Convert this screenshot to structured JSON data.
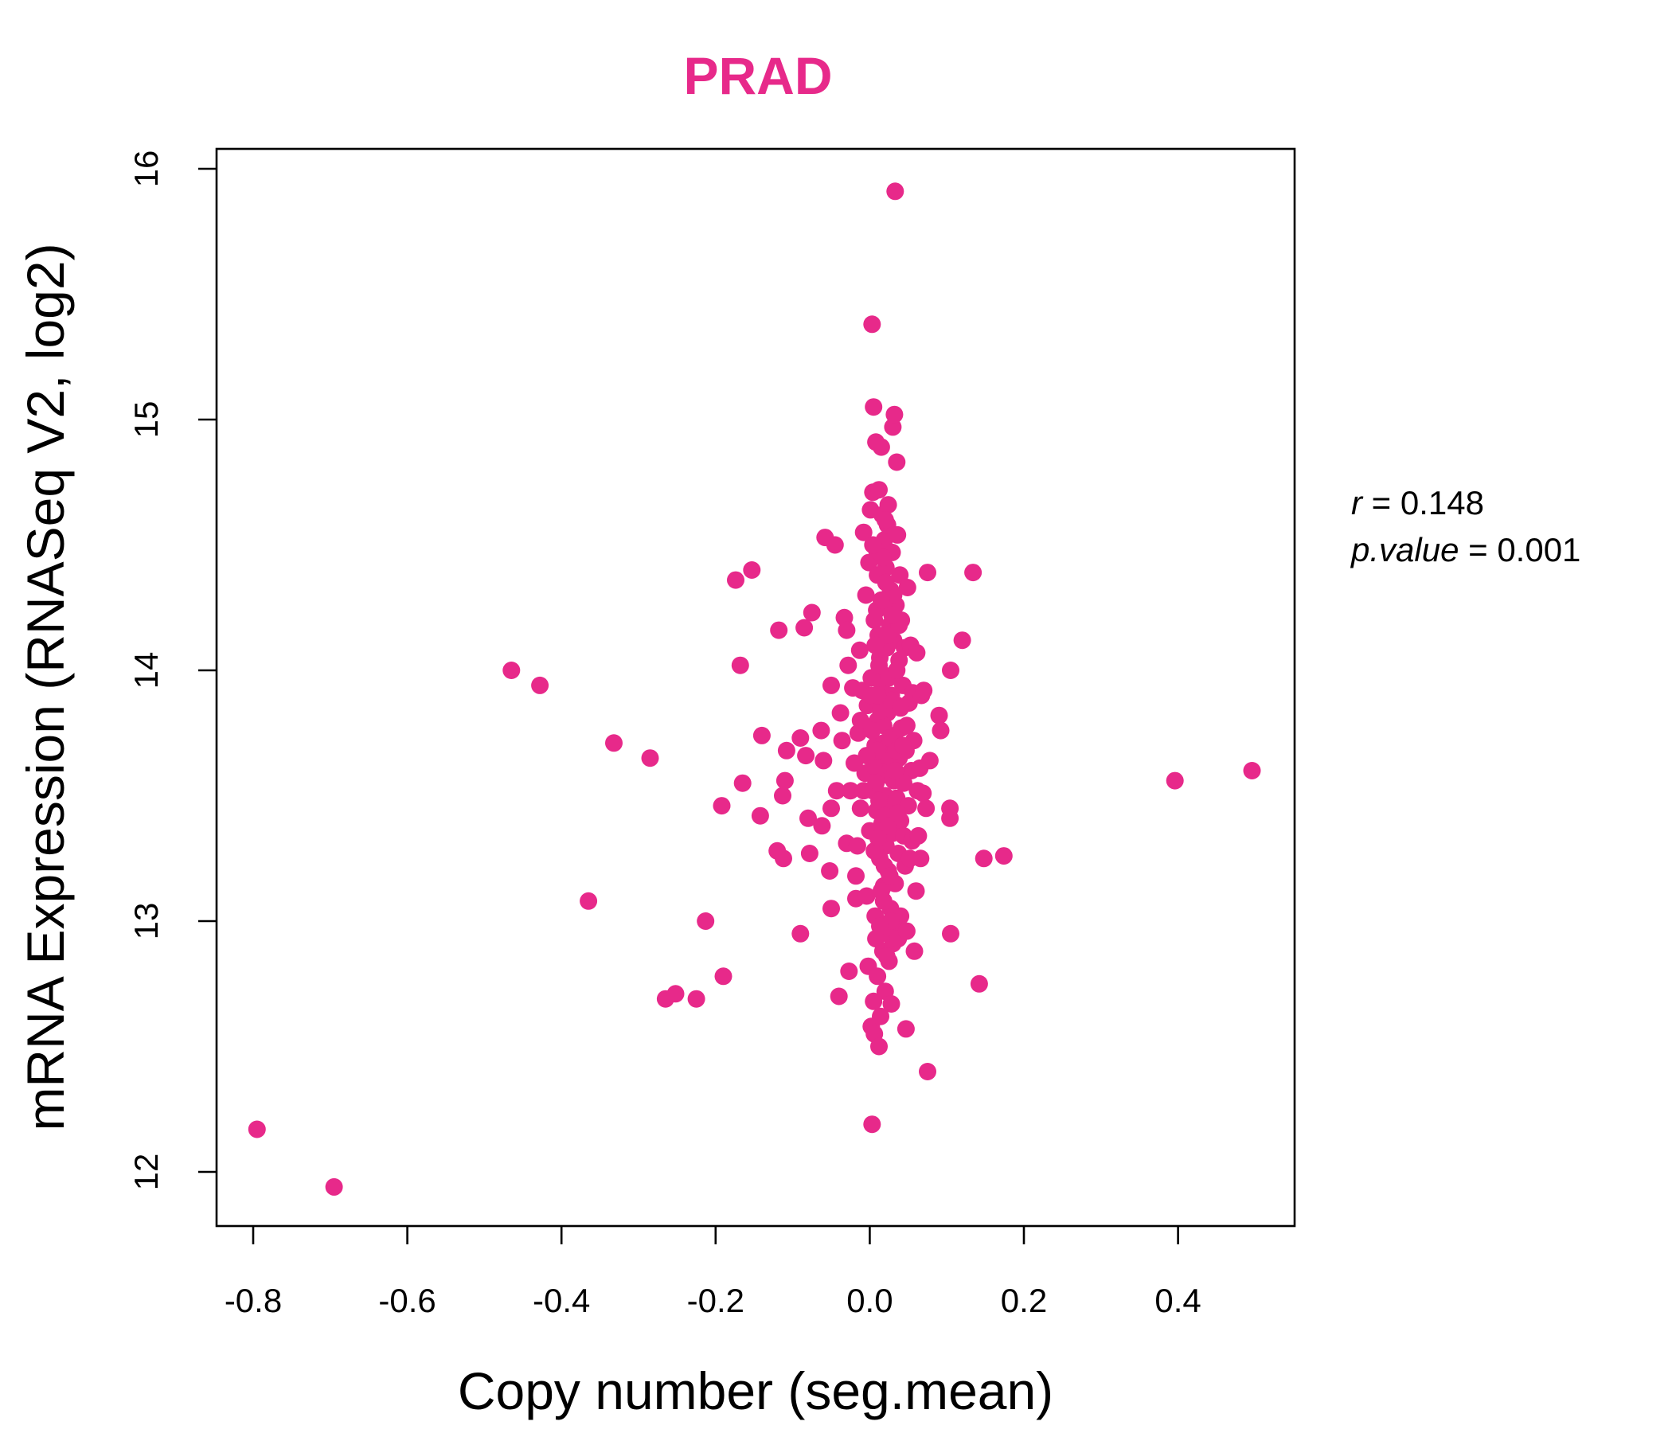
{
  "chart_data": {
    "type": "scatter",
    "title": "PRAD",
    "xlabel": "Copy number (seg.mean)",
    "ylabel": "mRNA Expression (RNASeq V2, log2)",
    "xlim": [
      -0.85,
      0.55
    ],
    "ylim": [
      11.8,
      16.1
    ],
    "xticks": [
      -0.8,
      -0.6,
      -0.4,
      -0.2,
      0.0,
      0.2,
      0.4
    ],
    "xtick_labels": [
      "-0.8",
      "-0.6",
      "-0.4",
      "-0.2",
      "0.0",
      "0.2",
      "0.4"
    ],
    "yticks": [
      12,
      13,
      14,
      15,
      16
    ],
    "ytick_labels": [
      "12",
      "13",
      "14",
      "15",
      "16"
    ],
    "grid": false,
    "legend": "none",
    "colors": {
      "points": "#E7298A",
      "title": "#E7298A"
    },
    "stats": {
      "r_label": "r",
      "r_value": "0.148",
      "p_label": "p.value",
      "p_value": "0.001"
    },
    "series": [
      {
        "points": [
          [
            -0.795,
            12.17
          ],
          [
            -0.695,
            11.94
          ],
          [
            -0.465,
            14.0
          ],
          [
            -0.428,
            13.94
          ],
          [
            -0.365,
            13.08
          ],
          [
            -0.332,
            13.71
          ],
          [
            -0.285,
            13.65
          ],
          [
            -0.265,
            12.69
          ],
          [
            -0.252,
            12.71
          ],
          [
            -0.225,
            12.69
          ],
          [
            -0.213,
            13.0
          ],
          [
            -0.192,
            13.46
          ],
          [
            -0.19,
            12.78
          ],
          [
            -0.174,
            14.36
          ],
          [
            -0.168,
            14.02
          ],
          [
            -0.165,
            13.55
          ],
          [
            -0.153,
            14.4
          ],
          [
            -0.142,
            13.42
          ],
          [
            -0.14,
            13.74
          ],
          [
            -0.12,
            13.28
          ],
          [
            -0.118,
            14.16
          ],
          [
            -0.113,
            13.5
          ],
          [
            -0.112,
            13.25
          ],
          [
            -0.11,
            13.56
          ],
          [
            -0.108,
            13.68
          ],
          [
            -0.09,
            12.95
          ],
          [
            -0.09,
            13.73
          ],
          [
            -0.085,
            14.17
          ],
          [
            -0.083,
            13.66
          ],
          [
            -0.08,
            13.41
          ],
          [
            -0.078,
            13.27
          ],
          [
            -0.075,
            14.23
          ],
          [
            -0.063,
            13.76
          ],
          [
            -0.062,
            13.38
          ],
          [
            -0.06,
            13.64
          ],
          [
            -0.058,
            14.53
          ],
          [
            -0.052,
            13.2
          ],
          [
            -0.05,
            13.05
          ],
          [
            -0.05,
            13.45
          ],
          [
            -0.05,
            13.94
          ],
          [
            -0.045,
            14.5
          ],
          [
            -0.043,
            13.52
          ],
          [
            -0.04,
            12.7
          ],
          [
            -0.038,
            13.83
          ],
          [
            -0.036,
            13.72
          ],
          [
            -0.033,
            14.21
          ],
          [
            -0.03,
            14.16
          ],
          [
            -0.03,
            13.31
          ],
          [
            -0.028,
            14.02
          ],
          [
            -0.027,
            12.8
          ],
          [
            -0.025,
            13.52
          ],
          [
            -0.022,
            13.93
          ],
          [
            -0.02,
            13.63
          ],
          [
            -0.018,
            13.18
          ],
          [
            -0.018,
            13.09
          ],
          [
            -0.016,
            13.3
          ],
          [
            -0.015,
            13.75
          ],
          [
            -0.013,
            14.08
          ],
          [
            -0.012,
            13.45
          ],
          [
            -0.01,
            13.92
          ],
          [
            -0.008,
            14.55
          ],
          [
            -0.006,
            13.59
          ],
          [
            -0.005,
            14.3
          ],
          [
            -0.004,
            13.1
          ],
          [
            -0.003,
            13.86
          ],
          [
            -0.002,
            12.82
          ],
          [
            -0.001,
            14.43
          ],
          [
            0.0,
            13.36
          ],
          [
            0.001,
            14.64
          ],
          [
            0.002,
            12.58
          ],
          [
            0.002,
            13.97
          ],
          [
            0.003,
            12.19
          ],
          [
            0.003,
            15.38
          ],
          [
            0.004,
            14.71
          ],
          [
            0.004,
            13.52
          ],
          [
            0.005,
            15.05
          ],
          [
            0.005,
            12.68
          ],
          [
            0.006,
            12.55
          ],
          [
            0.006,
            14.2
          ],
          [
            0.007,
            13.02
          ],
          [
            0.007,
            13.7
          ],
          [
            0.008,
            14.91
          ],
          [
            0.008,
            12.93
          ],
          [
            0.009,
            14.48
          ],
          [
            0.009,
            13.44
          ],
          [
            0.01,
            14.38
          ],
          [
            0.01,
            13.8
          ],
          [
            0.01,
            12.78
          ],
          [
            0.011,
            14.14
          ],
          [
            0.011,
            13.57
          ],
          [
            0.012,
            14.72
          ],
          [
            0.012,
            12.5
          ],
          [
            0.013,
            13.25
          ],
          [
            0.013,
            14.05
          ],
          [
            0.014,
            13.6
          ],
          [
            0.014,
            12.62
          ],
          [
            0.015,
            14.89
          ],
          [
            0.015,
            13.92
          ],
          [
            0.016,
            13.39
          ],
          [
            0.016,
            14.62
          ],
          [
            0.017,
            12.88
          ],
          [
            0.017,
            14.27
          ],
          [
            0.018,
            13.71
          ],
          [
            0.018,
            13.14
          ],
          [
            0.019,
            14.52
          ],
          [
            0.019,
            13.98
          ],
          [
            0.02,
            12.72
          ],
          [
            0.02,
            13.5
          ],
          [
            0.021,
            14.41
          ],
          [
            0.021,
            13.3
          ],
          [
            0.022,
            14.09
          ],
          [
            0.022,
            12.95
          ],
          [
            0.023,
            13.83
          ],
          [
            0.023,
            14.58
          ],
          [
            0.024,
            13.2
          ],
          [
            0.024,
            14.66
          ],
          [
            0.025,
            13.62
          ],
          [
            0.025,
            12.84
          ],
          [
            0.026,
            14.18
          ],
          [
            0.026,
            13.45
          ],
          [
            0.027,
            14.32
          ],
          [
            0.027,
            13.05
          ],
          [
            0.028,
            12.67
          ],
          [
            0.028,
            13.9
          ],
          [
            0.029,
            14.47
          ],
          [
            0.029,
            13.35
          ],
          [
            0.03,
            14.97
          ],
          [
            0.03,
            12.91
          ],
          [
            0.031,
            14.12
          ],
          [
            0.031,
            13.56
          ],
          [
            0.032,
            15.02
          ],
          [
            0.032,
            13.74
          ],
          [
            0.033,
            15.91
          ],
          [
            0.033,
            13.15
          ],
          [
            0.034,
            14.26
          ],
          [
            0.034,
            12.99
          ],
          [
            0.035,
            14.83
          ],
          [
            0.035,
            13.49
          ],
          [
            0.036,
            14.54
          ],
          [
            0.036,
            13.86
          ],
          [
            0.037,
            13.27
          ],
          [
            0.037,
            12.93
          ],
          [
            0.038,
            14.04
          ],
          [
            0.038,
            13.65
          ],
          [
            0.039,
            14.38
          ],
          [
            0.04,
            13.4
          ],
          [
            0.04,
            13.02
          ],
          [
            0.041,
            14.2
          ],
          [
            0.042,
            13.58
          ],
          [
            0.043,
            13.94
          ],
          [
            0.044,
            13.34
          ],
          [
            0.045,
            14.09
          ],
          [
            0.046,
            13.22
          ],
          [
            0.047,
            12.57
          ],
          [
            0.047,
            13.68
          ],
          [
            0.048,
            12.96
          ],
          [
            0.049,
            14.33
          ],
          [
            0.05,
            13.46
          ],
          [
            0.051,
            13.87
          ],
          [
            0.052,
            13.25
          ],
          [
            0.053,
            14.1
          ],
          [
            0.054,
            13.6
          ],
          [
            0.055,
            13.32
          ],
          [
            0.056,
            13.91
          ],
          [
            0.057,
            13.72
          ],
          [
            0.058,
            12.88
          ],
          [
            0.06,
            13.12
          ],
          [
            0.061,
            14.07
          ],
          [
            0.062,
            13.52
          ],
          [
            0.063,
            13.34
          ],
          [
            0.065,
            13.61
          ],
          [
            0.066,
            13.25
          ],
          [
            0.067,
            13.9
          ],
          [
            0.069,
            13.51
          ],
          [
            0.07,
            13.92
          ],
          [
            0.073,
            13.45
          ],
          [
            0.075,
            12.4
          ],
          [
            0.075,
            14.39
          ],
          [
            0.078,
            13.64
          ],
          [
            0.09,
            13.82
          ],
          [
            0.092,
            13.76
          ],
          [
            0.104,
            13.45
          ],
          [
            0.104,
            13.41
          ],
          [
            0.105,
            12.95
          ],
          [
            0.105,
            14.0
          ],
          [
            0.12,
            14.12
          ],
          [
            0.134,
            14.39
          ],
          [
            0.142,
            12.75
          ],
          [
            0.148,
            13.25
          ],
          [
            0.174,
            13.26
          ],
          [
            0.396,
            13.56
          ],
          [
            0.496,
            13.6
          ],
          [
            0.005,
            13.62
          ],
          [
            0.012,
            13.48
          ],
          [
            0.018,
            13.78
          ],
          [
            0.022,
            13.66
          ],
          [
            0.008,
            13.55
          ],
          [
            0.026,
            13.73
          ],
          [
            0.014,
            13.84
          ],
          [
            0.03,
            13.58
          ],
          [
            0.02,
            13.42
          ],
          [
            0.01,
            13.68
          ],
          [
            0.016,
            13.95
          ],
          [
            0.024,
            13.38
          ],
          [
            0.006,
            13.28
          ],
          [
            0.028,
            13.88
          ],
          [
            0.034,
            13.68
          ],
          [
            0.012,
            14.02
          ],
          [
            0.019,
            13.22
          ],
          [
            0.003,
            13.76
          ],
          [
            0.023,
            14.14
          ],
          [
            0.015,
            13.12
          ],
          [
            -0.004,
            13.66
          ],
          [
            0.041,
            13.77
          ],
          [
            0.009,
            14.24
          ],
          [
            0.036,
            13.43
          ],
          [
            0.027,
            13.0
          ],
          [
            0.002,
            13.9
          ],
          [
            0.031,
            14.3
          ],
          [
            0.017,
            14.45
          ],
          [
            0.044,
            13.55
          ],
          [
            0.038,
            14.18
          ],
          [
            -0.008,
            13.52
          ],
          [
            0.013,
            12.98
          ],
          [
            0.021,
            14.35
          ],
          [
            0.025,
            13.97
          ],
          [
            0.007,
            14.1
          ],
          [
            0.04,
            13.85
          ],
          [
            0.018,
            13.08
          ],
          [
            0.029,
            14.22
          ],
          [
            0.011,
            13.33
          ],
          [
            0.033,
            13.6
          ],
          [
            -0.012,
            13.8
          ],
          [
            0.048,
            13.78
          ],
          [
            0.035,
            14.0
          ],
          [
            0.004,
            14.5
          ],
          [
            0.022,
            12.86
          ],
          [
            0.015,
            14.28
          ],
          [
            0.026,
            13.18
          ],
          [
            0.043,
            13.7
          ],
          [
            0.01,
            13.9
          ],
          [
            0.02,
            14.6
          ]
        ]
      }
    ]
  }
}
